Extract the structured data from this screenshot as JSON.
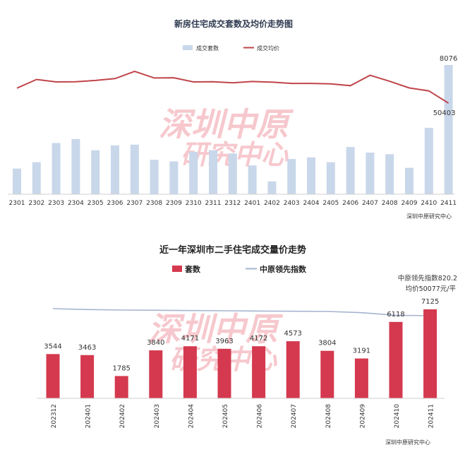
{
  "chart_data": [
    {
      "type": "bar",
      "title": "新房住宅成交套数及均价走势图",
      "categories": [
        "2301",
        "2302",
        "2303",
        "2304",
        "2305",
        "2306",
        "2307",
        "2308",
        "2309",
        "2310",
        "2311",
        "2312",
        "2401",
        "2402",
        "2403",
        "2404",
        "2405",
        "2406",
        "2407",
        "2408",
        "2409",
        "2410",
        "2411"
      ],
      "series": [
        {
          "name": "成交套数",
          "type": "bar",
          "color": "#c9d7ea",
          "values": [
            1600,
            2000,
            3200,
            3450,
            2750,
            3050,
            3100,
            2150,
            2050,
            2650,
            2750,
            2550,
            1800,
            800,
            2200,
            2300,
            2000,
            2950,
            2600,
            2500,
            1650,
            4150,
            8076
          ]
        },
        {
          "name": "成交均价",
          "type": "line",
          "color": "#c0454a",
          "values": [
            57600,
            61800,
            60600,
            60700,
            61300,
            62200,
            65700,
            62500,
            62600,
            60600,
            60700,
            60200,
            60800,
            60500,
            59900,
            59900,
            59700,
            58800,
            63800,
            60900,
            57700,
            56300,
            50403
          ]
        }
      ],
      "data_labels": {
        "8076": "8076",
        "50403": "50403"
      },
      "source": "深圳中原研究中心"
    },
    {
      "type": "bar",
      "title": "近一年深圳市二手住宅成交量价走势",
      "categories": [
        "202312",
        "202401",
        "202402",
        "202403",
        "202404",
        "202405",
        "202406",
        "202407",
        "202408",
        "202409",
        "202410",
        "202411"
      ],
      "series": [
        {
          "name": "套数",
          "type": "bar",
          "color": "#d4394f",
          "values": [
            3544,
            3463,
            1785,
            3840,
            4171,
            3963,
            4172,
            4573,
            3804,
            3191,
            6118,
            7125
          ]
        },
        {
          "name": "中原领先指数",
          "type": "line",
          "color": "#a6b4cf",
          "values": [
            850,
            846,
            844,
            843,
            842,
            841,
            840,
            839,
            838,
            833,
            822,
            820.2
          ]
        }
      ],
      "annotations": [
        "中原领先指数820.2",
        "均价50077元/平"
      ],
      "source": "深圳中原研究中心"
    }
  ],
  "watermark": {
    "line1": "深圳中原",
    "line2": "研究中心"
  }
}
